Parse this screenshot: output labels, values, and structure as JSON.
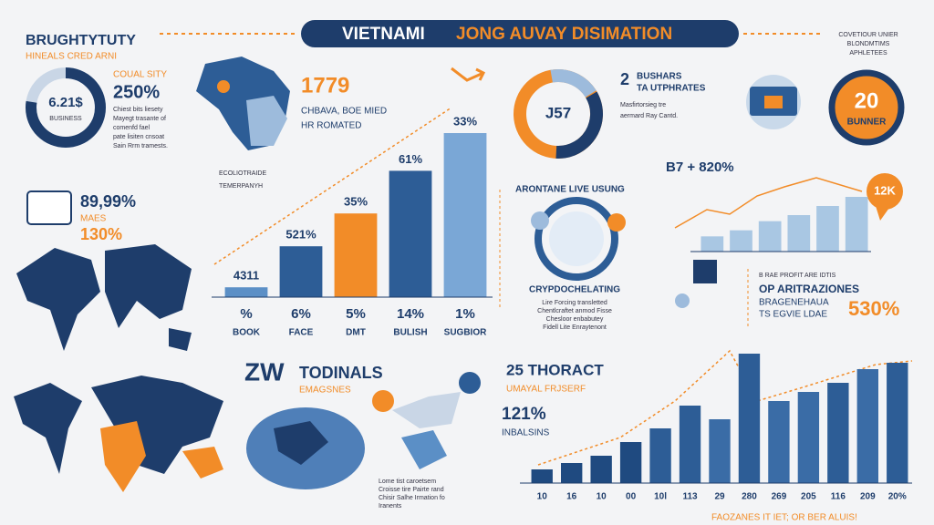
{
  "header": {
    "title_a": "VIETNAMI",
    "title_b": "JONG AUVAY DISIMATION"
  },
  "top_left": {
    "title": "BRUGHTYTUTY",
    "subtitle": "HINEALS CRED ARNI",
    "donut_value": "6.21$",
    "donut_label": "BUSINESS",
    "stat_label": "COUAL SITY",
    "stat": "250%",
    "body": [
      "Chiest bits liesety",
      "Mayegt trasante of",
      "comenfd fael",
      "pate lisiten cnsoat",
      "Sain Rrm tramests."
    ]
  },
  "map_block": {
    "stat": "1779",
    "lines": [
      "CHBAVA, BOE MIED",
      "HR ROMATED"
    ]
  },
  "trend_label": [
    "ECOLIOTRAIDE",
    "TEMERPANYH"
  ],
  "left_stats": {
    "value": "89,99%",
    "label": "MAES",
    "value2": "130%"
  },
  "donut2": {
    "value": "J57",
    "title": "2",
    "title_rest": "BUSHARS",
    "subtitle": "TA UTPHRATES",
    "body": [
      "Masfirtorsieg tre",
      "aermard Ray Cantd."
    ]
  },
  "top_right": {
    "lines": [
      "COVETIOUR UNIER",
      "BLONDMTIMS",
      "APHLETEES"
    ],
    "value": "20",
    "label": "BUNNER"
  },
  "mid_right": {
    "stat": "B7 + 820%",
    "bubble": "12K"
  },
  "center_right": {
    "title": "ARONTANE LIVE USUNG",
    "subtitle": "CRYPDOCHELATING",
    "body": [
      "Lire Forcing transletted",
      "Chentlcraftet anmod Fisse",
      "Chesloor enbabutey",
      "Fidell Lite Enraytenont"
    ]
  },
  "right_stat": {
    "kicker": "B RAE PROFIT ARE IDTIS",
    "title": "OP ARITRAZIONES",
    "lines": [
      "BRAGENEHAUA",
      "TS EGVIE LDAE"
    ],
    "value": "530%"
  },
  "bottom_center": {
    "title_a": "ZW",
    "title_b": "TODINALS",
    "subtitle": "EMAGSNES",
    "body": [
      "Lome tist caroetsem",
      "Croisse tire Pairte rand",
      "Chisir Salhe Irmation fo",
      "Iranents"
    ]
  },
  "bottom_chart_text": {
    "title": "25 THORACT",
    "subtitle": "UMAYAL FRJSERF",
    "stat": "121%",
    "stat_label": "INBALSINS"
  },
  "footer": "FAOZANES IT IET; OR BER ALUIS!",
  "chart_data": [
    {
      "type": "bar",
      "categories": [
        "BOOK",
        "FACE",
        "DMT",
        "BULISH",
        "SUGBIOR"
      ],
      "values": [
        6,
        31,
        51,
        77,
        100
      ],
      "colors": [
        "#5b8fc6",
        "#2d5d96",
        "#f28c28",
        "#2d5d96",
        "#7aa7d6"
      ],
      "annotations": [
        "4311",
        "521%",
        "35%",
        "61%",
        "33%"
      ],
      "sublabels": [
        "%",
        "6%",
        "5%",
        "14%",
        "1%"
      ]
    },
    {
      "type": "bar",
      "values": [
        10,
        14,
        20,
        24,
        30,
        36
      ],
      "colors": [
        "#a9c7e3",
        "#a9c7e3",
        "#a9c7e3",
        "#a9c7e3",
        "#a9c7e3",
        "#a9c7e3"
      ]
    },
    {
      "type": "bar",
      "categories": [
        "10",
        "16",
        "10",
        "00",
        "10l",
        "113",
        "29",
        "280",
        "269",
        "205",
        "116",
        "209",
        "20%"
      ],
      "values": [
        15,
        22,
        30,
        45,
        60,
        85,
        70,
        142,
        90,
        100,
        110,
        125,
        132
      ],
      "colors": [
        "#1f4a80",
        "#1f4a80",
        "#1f4a80",
        "#1f4a80",
        "#2d5d96",
        "#2d5d96",
        "#3a6ca6",
        "#2d5d96",
        "#3a6ca6",
        "#3a6ca6",
        "#2d5d96",
        "#3a6ca6",
        "#2d5d96"
      ]
    }
  ]
}
